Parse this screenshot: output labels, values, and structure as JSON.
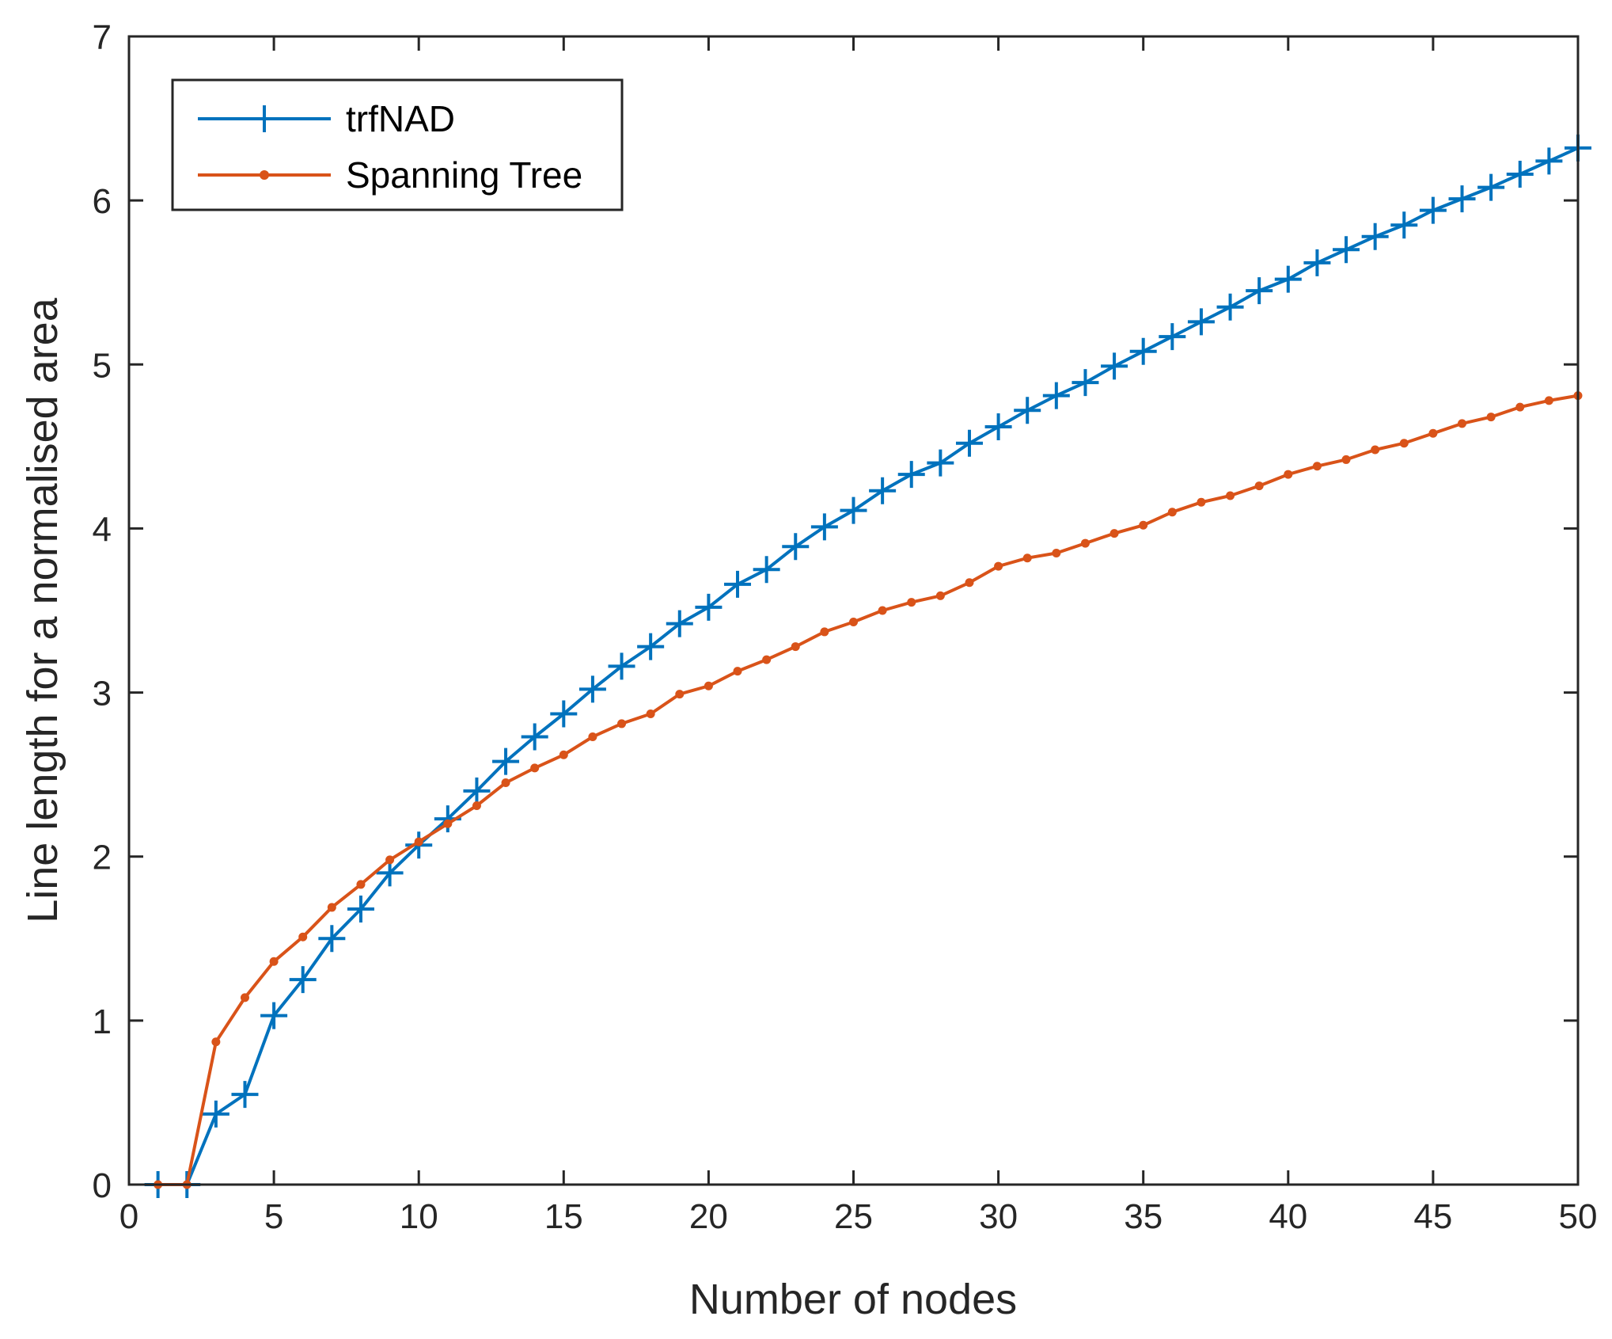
{
  "chart_data": {
    "type": "line",
    "title": "",
    "xlabel": "Number of nodes",
    "ylabel": "Line length for a normalised area",
    "xlim": [
      0,
      50
    ],
    "ylim": [
      0,
      7
    ],
    "xticks": [
      0,
      5,
      10,
      15,
      20,
      25,
      30,
      35,
      40,
      45,
      50
    ],
    "yticks": [
      0,
      1,
      2,
      3,
      4,
      5,
      6,
      7
    ],
    "grid": false,
    "legend_position": "top-left",
    "x": [
      1,
      2,
      3,
      4,
      5,
      6,
      7,
      8,
      9,
      10,
      11,
      12,
      13,
      14,
      15,
      16,
      17,
      18,
      19,
      20,
      21,
      22,
      23,
      24,
      25,
      26,
      27,
      28,
      29,
      30,
      31,
      32,
      33,
      34,
      35,
      36,
      37,
      38,
      39,
      40,
      41,
      42,
      43,
      44,
      45,
      46,
      47,
      48,
      49,
      50
    ],
    "series": [
      {
        "name": "trfNAD",
        "color": "#0072BD",
        "marker": "plus",
        "values": [
          0,
          0,
          0.43,
          0.55,
          1.03,
          1.25,
          1.5,
          1.68,
          1.9,
          2.07,
          2.23,
          2.4,
          2.58,
          2.73,
          2.87,
          3.02,
          3.16,
          3.28,
          3.42,
          3.52,
          3.66,
          3.75,
          3.89,
          4.01,
          4.11,
          4.23,
          4.33,
          4.4,
          4.52,
          4.62,
          4.72,
          4.81,
          4.89,
          4.99,
          5.08,
          5.17,
          5.26,
          5.35,
          5.45,
          5.52,
          5.62,
          5.7,
          5.78,
          5.85,
          5.94,
          6.01,
          6.08,
          6.16,
          6.24,
          6.32
        ]
      },
      {
        "name": "Spanning Tree",
        "color": "#D95319",
        "marker": "dot",
        "values": [
          0,
          0,
          0.87,
          1.14,
          1.36,
          1.51,
          1.69,
          1.83,
          1.98,
          2.09,
          2.2,
          2.31,
          2.45,
          2.54,
          2.62,
          2.73,
          2.81,
          2.87,
          2.99,
          3.04,
          3.13,
          3.2,
          3.28,
          3.37,
          3.43,
          3.5,
          3.55,
          3.59,
          3.67,
          3.77,
          3.82,
          3.85,
          3.91,
          3.97,
          4.02,
          4.1,
          4.16,
          4.2,
          4.26,
          4.33,
          4.38,
          4.42,
          4.48,
          4.52,
          4.58,
          4.64,
          4.68,
          4.74,
          4.78,
          4.81
        ]
      }
    ]
  }
}
